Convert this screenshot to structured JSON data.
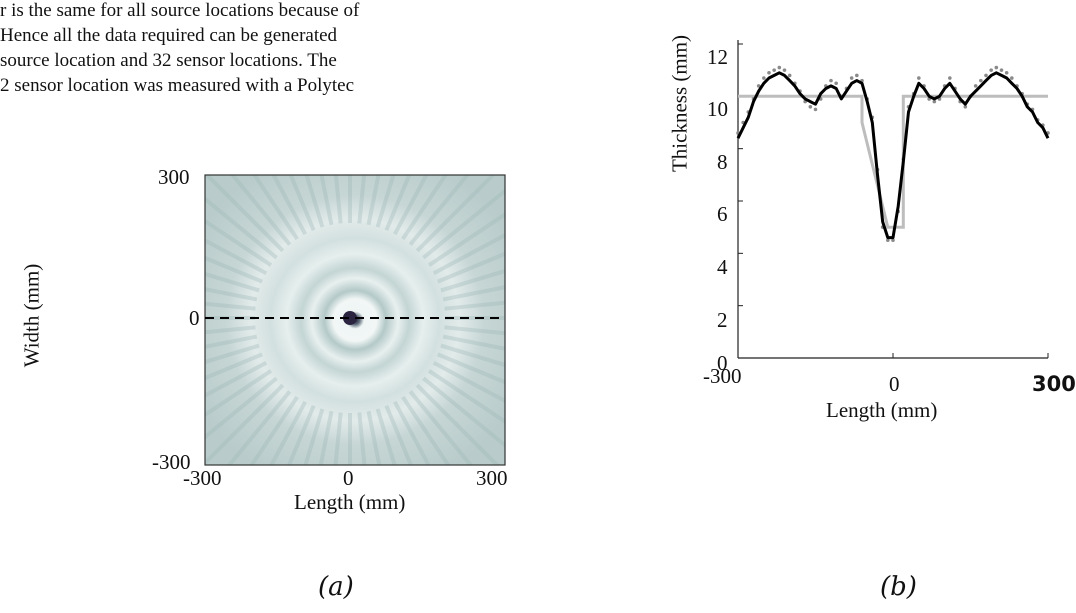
{
  "paragraph": {
    "lines": [
      "r is the same for all source locations because of",
      "Hence all the data required can be generated",
      "source location and 32 sensor locations.  The",
      "2 sensor location was measured with a Polytec"
    ]
  },
  "captions": {
    "a": "(a)",
    "b": "(b)"
  },
  "colors": {
    "field_light": "#dbe7e6",
    "field_mid": "#a9c1c0",
    "field_dark": "#2a2440",
    "curve": "#000000",
    "scatter": "#8a8a8a",
    "reference": "#bdbdbd"
  },
  "chart_data": [
    {
      "type": "heatmap",
      "title": "",
      "xlabel": "Length (mm)",
      "ylabel": "Width (mm)",
      "xlim": [
        -300,
        300
      ],
      "ylim": [
        -300,
        300
      ],
      "xticks": [
        "-300",
        "0",
        "300"
      ],
      "yticks": [
        "300",
        "0",
        "-300"
      ],
      "annotations": [
        "dashed line at width 0"
      ]
    },
    {
      "type": "line",
      "title": "",
      "xlabel": "Length (mm)",
      "ylabel": "Thickness (mm)",
      "xlim": [
        -300,
        300
      ],
      "ylim": [
        0,
        12
      ],
      "xticks": [
        "-300",
        "0",
        "300"
      ],
      "yticks": [
        "0",
        "2",
        "4",
        "6",
        "8",
        "10",
        "12"
      ],
      "series": [
        {
          "style": "solid black",
          "x": [
            -300,
            -290,
            -280,
            -270,
            -260,
            -250,
            -240,
            -230,
            -220,
            -210,
            -200,
            -190,
            -180,
            -170,
            -160,
            -150,
            -140,
            -130,
            -120,
            -110,
            -100,
            -90,
            -80,
            -70,
            -60,
            -50,
            -40,
            -30,
            -20,
            -10,
            0,
            10,
            20,
            30,
            40,
            50,
            60,
            70,
            80,
            90,
            100,
            110,
            120,
            130,
            140,
            150,
            160,
            170,
            180,
            190,
            200,
            210,
            220,
            230,
            240,
            250,
            260,
            270,
            280,
            290,
            300
          ],
          "y": [
            8.4,
            8.8,
            9.2,
            9.8,
            10.2,
            10.5,
            10.7,
            10.8,
            10.9,
            10.8,
            10.6,
            10.4,
            10.1,
            9.9,
            9.8,
            9.7,
            10.1,
            10.3,
            10.4,
            10.3,
            9.9,
            10.2,
            10.5,
            10.6,
            10.5,
            9.8,
            9.0,
            7.0,
            5.2,
            4.6,
            4.6,
            5.8,
            7.5,
            9.4,
            10.0,
            10.5,
            10.3,
            10.0,
            9.9,
            10.0,
            10.3,
            10.5,
            10.2,
            9.9,
            9.7,
            10.0,
            10.2,
            10.4,
            10.6,
            10.8,
            10.9,
            10.8,
            10.7,
            10.5,
            10.3,
            10.0,
            9.6,
            9.4,
            9.0,
            8.8,
            8.4
          ]
        },
        {
          "style": "grey dotted",
          "x": [
            -300,
            -290,
            -280,
            -270,
            -260,
            -250,
            -240,
            -230,
            -220,
            -210,
            -200,
            -190,
            -180,
            -170,
            -160,
            -150,
            -140,
            -130,
            -120,
            -110,
            -100,
            -90,
            -80,
            -70,
            -60,
            -50,
            -40,
            -30,
            -20,
            -10,
            0,
            10,
            20,
            30,
            40,
            50,
            60,
            70,
            80,
            90,
            100,
            110,
            120,
            130,
            140,
            150,
            160,
            170,
            180,
            190,
            200,
            210,
            220,
            230,
            240,
            250,
            260,
            270,
            280,
            290,
            300
          ],
          "y": [
            8.6,
            9.0,
            9.4,
            9.9,
            10.4,
            10.7,
            10.9,
            11.0,
            11.1,
            11.0,
            10.8,
            10.5,
            10.2,
            9.8,
            9.6,
            9.5,
            9.9,
            10.4,
            10.6,
            10.5,
            10.0,
            10.3,
            10.7,
            10.8,
            10.6,
            9.9,
            9.2,
            7.2,
            5.0,
            4.5,
            4.5,
            5.6,
            7.6,
            9.6,
            10.1,
            10.7,
            10.4,
            9.9,
            9.8,
            9.9,
            10.4,
            10.7,
            10.3,
            9.8,
            9.6,
            10.0,
            10.4,
            10.6,
            10.8,
            11.0,
            11.1,
            11.0,
            10.9,
            10.7,
            10.4,
            10.1,
            9.7,
            9.5,
            9.1,
            8.9,
            8.6
          ]
        },
        {
          "style": "light grey reference",
          "x": [
            -300,
            -60,
            -60,
            -10,
            -10,
            20,
            20,
            300
          ],
          "y": [
            10,
            10,
            9,
            5,
            5,
            5,
            10,
            10
          ]
        }
      ]
    }
  ]
}
